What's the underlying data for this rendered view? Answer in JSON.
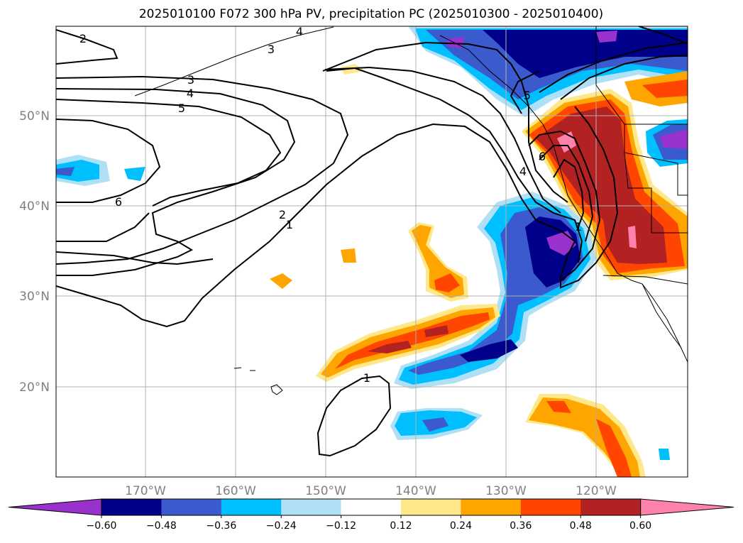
{
  "map": {
    "title": "2025010100 F072 300 hPa PV, precipitation PC (2025010300 - 2025010400)",
    "lat_labels": [
      "50°N",
      "40°N",
      "30°N",
      "20°N"
    ],
    "lon_labels": [
      "170°W",
      "160°W",
      "150°W",
      "140°W",
      "130°W",
      "120°W"
    ],
    "contour_labels": [
      "2",
      "3",
      "4",
      "5",
      "6",
      "4",
      "3",
      "1",
      "2",
      "1",
      "1",
      "6",
      "4",
      "5"
    ]
  },
  "colorbar": {
    "ticks": [
      "−0.60",
      "−0.48",
      "−0.36",
      "−0.24",
      "−0.12",
      "0.12",
      "0.24",
      "0.36",
      "0.48",
      "0.60"
    ],
    "colors": [
      "#9932cc",
      "#00008b",
      "#3a5acd",
      "#00bfff",
      "#b0e0f6",
      "#ffffff",
      "#ffe88a",
      "#ffa500",
      "#ff4500",
      "#b22222",
      "#ff82ab"
    ]
  }
}
